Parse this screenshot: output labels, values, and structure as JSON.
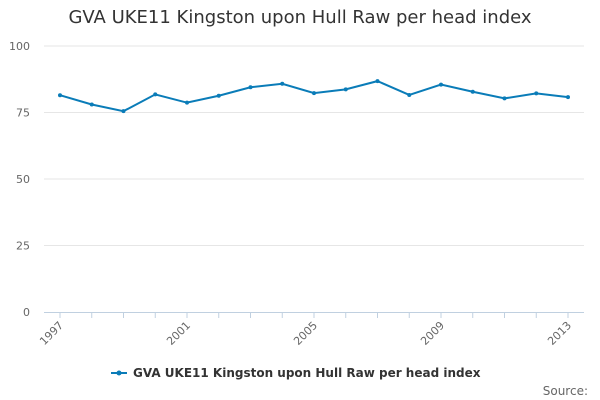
{
  "chart_data": {
    "type": "line",
    "title": "GVA UKE11 Kingston upon Hull Raw per head index",
    "xlabel": "",
    "ylabel": "",
    "x": [
      1997,
      1998,
      1999,
      2000,
      2001,
      2002,
      2003,
      2004,
      2005,
      2006,
      2007,
      2008,
      2009,
      2010,
      2011,
      2012,
      2013
    ],
    "series": [
      {
        "name": "GVA UKE11 Kingston upon Hull Raw per head index",
        "color": "#0a7cb8",
        "values": [
          81.5,
          78.0,
          75.5,
          81.8,
          78.7,
          81.3,
          84.5,
          85.8,
          82.3,
          83.7,
          86.8,
          81.6,
          85.5,
          82.8,
          80.3,
          82.2,
          80.8
        ]
      }
    ],
    "ylim": [
      0,
      100
    ],
    "yticks": [
      "0",
      "25",
      "50",
      "75",
      "100"
    ],
    "xticks": [
      "1997",
      "2001",
      "2005",
      "2009",
      "2013"
    ],
    "grid": "horizontal",
    "legend_position": "bottom",
    "source": "Source:"
  }
}
